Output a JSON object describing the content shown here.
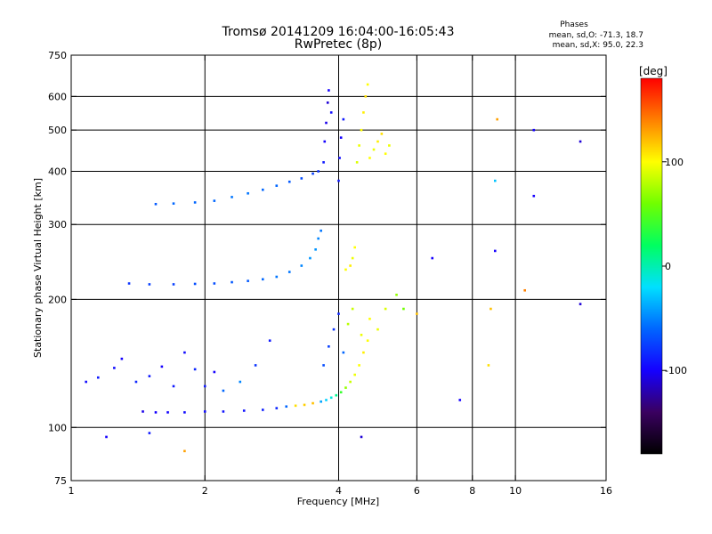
{
  "chart_data": {
    "type": "scatter",
    "title": "Tromsø 20141209 16:04:00-16:05:43",
    "subtitle": "RwPretec (8p)",
    "xlabel": "Frequency [MHz]",
    "ylabel": "Stationary phase Virtual Height [km]",
    "x_scale": "log2",
    "y_scale": "log",
    "xlim": [
      1,
      16
    ],
    "ylim": [
      75,
      750
    ],
    "x_ticks": [
      1,
      2,
      4,
      6,
      8,
      10,
      16
    ],
    "y_ticks": [
      75,
      100,
      200,
      300,
      400,
      500,
      600,
      750
    ],
    "x_grid": [
      2,
      4,
      6,
      8,
      10
    ],
    "y_grid": [
      100,
      200,
      300,
      400,
      500,
      600
    ],
    "grid": true,
    "phase_box": {
      "title": "Phases",
      "line_o": "mean, sd,O: -71.3, 18.7",
      "line_x": "mean, sd,X:  95.0, 22.3"
    },
    "colorbar": {
      "label": "[deg]",
      "range": [
        -180,
        180
      ],
      "ticks": [
        -100,
        0,
        100
      ],
      "colors": [
        "#000000",
        "#3a0060",
        "#1500ff",
        "#0066ff",
        "#00e0ff",
        "#00ff60",
        "#70ff00",
        "#ffff00",
        "#ff8000",
        "#ff0000"
      ]
    },
    "series": [
      {
        "points": [
          [
            1.45,
            109,
            -105
          ],
          [
            1.55,
            108.5,
            -100
          ],
          [
            1.65,
            108.5,
            -98
          ],
          [
            1.8,
            108.5,
            -95
          ],
          [
            2.0,
            109,
            -95
          ],
          [
            2.2,
            109,
            -92
          ],
          [
            2.45,
            109.5,
            -92
          ],
          [
            2.7,
            110,
            -88
          ],
          [
            2.9,
            111,
            -85
          ],
          [
            3.05,
            112,
            -60
          ],
          [
            3.2,
            112.5,
            110
          ],
          [
            3.35,
            113,
            115
          ],
          [
            3.5,
            114,
            120
          ],
          [
            3.65,
            115,
            -40
          ],
          [
            3.75,
            116,
            -25
          ],
          [
            3.85,
            117.5,
            -10
          ],
          [
            3.95,
            119,
            10
          ],
          [
            4.05,
            121,
            40
          ],
          [
            4.15,
            124,
            70
          ],
          [
            4.25,
            128,
            85
          ],
          [
            4.35,
            133,
            95
          ],
          [
            4.45,
            140,
            100
          ],
          [
            4.55,
            150,
            105
          ],
          [
            4.65,
            160,
            100
          ],
          [
            1.35,
            218,
            -80
          ],
          [
            1.5,
            217,
            -75
          ],
          [
            1.7,
            217,
            -75
          ],
          [
            1.9,
            217.5,
            -70
          ],
          [
            2.1,
            218,
            -70
          ],
          [
            2.3,
            219.5,
            -65
          ],
          [
            2.5,
            221,
            -65
          ],
          [
            2.7,
            223,
            -60
          ],
          [
            2.9,
            226,
            -55
          ],
          [
            3.1,
            232,
            -55
          ],
          [
            3.3,
            240,
            -50
          ],
          [
            3.45,
            250,
            -45
          ],
          [
            3.55,
            262,
            -45
          ],
          [
            3.6,
            278,
            -50
          ],
          [
            3.65,
            290,
            -55
          ],
          [
            4.15,
            235,
            100
          ],
          [
            4.25,
            240,
            105
          ],
          [
            4.3,
            250,
            95
          ],
          [
            4.35,
            265,
            100
          ],
          [
            1.55,
            335,
            -65
          ],
          [
            1.7,
            336,
            -60
          ],
          [
            1.9,
            338,
            -60
          ],
          [
            2.1,
            341,
            -60
          ],
          [
            2.3,
            348,
            -55
          ],
          [
            2.5,
            355,
            -55
          ],
          [
            2.7,
            362,
            -60
          ],
          [
            2.9,
            370,
            -60
          ],
          [
            3.1,
            378,
            -65
          ],
          [
            3.3,
            385,
            -70
          ],
          [
            3.5,
            395,
            -75
          ],
          [
            3.6,
            400,
            -80
          ],
          [
            3.7,
            420,
            -90
          ],
          [
            3.72,
            470,
            -100
          ],
          [
            3.75,
            520,
            -105
          ],
          [
            3.78,
            580,
            -110
          ],
          [
            3.8,
            620,
            -100
          ],
          [
            3.85,
            550,
            -95
          ],
          [
            4.0,
            380,
            -90
          ],
          [
            4.02,
            430,
            -95
          ],
          [
            4.05,
            480,
            -100
          ],
          [
            4.1,
            530,
            -90
          ],
          [
            4.4,
            420,
            90
          ],
          [
            4.45,
            460,
            95
          ],
          [
            4.5,
            500,
            100
          ],
          [
            4.55,
            550,
            105
          ],
          [
            4.6,
            600,
            110
          ],
          [
            4.65,
            640,
            100
          ],
          [
            4.7,
            430,
            100
          ],
          [
            4.8,
            450,
            95
          ],
          [
            4.9,
            470,
            105
          ],
          [
            5.0,
            490,
            110
          ],
          [
            5.1,
            440,
            100
          ],
          [
            5.2,
            460,
            95
          ],
          [
            1.08,
            128,
            -95
          ],
          [
            1.15,
            131,
            -90
          ],
          [
            1.25,
            138,
            -95
          ],
          [
            1.3,
            145,
            -100
          ],
          [
            1.4,
            128,
            -85
          ],
          [
            1.5,
            132,
            -90
          ],
          [
            1.6,
            139,
            -100
          ],
          [
            1.7,
            125,
            -90
          ],
          [
            1.8,
            150,
            -95
          ],
          [
            1.9,
            137,
            -85
          ],
          [
            2.0,
            125,
            -90
          ],
          [
            2.1,
            135,
            -100
          ],
          [
            2.2,
            122,
            -60
          ],
          [
            2.4,
            128,
            -50
          ],
          [
            2.6,
            140,
            -80
          ],
          [
            2.8,
            160,
            -90
          ],
          [
            3.7,
            140,
            -70
          ],
          [
            3.8,
            155,
            -75
          ],
          [
            3.9,
            170,
            -80
          ],
          [
            4.0,
            185,
            -85
          ],
          [
            4.1,
            150,
            -60
          ],
          [
            4.2,
            175,
            80
          ],
          [
            4.3,
            190,
            85
          ],
          [
            4.5,
            165,
            95
          ],
          [
            4.7,
            180,
            100
          ],
          [
            4.9,
            170,
            95
          ],
          [
            5.1,
            190,
            90
          ],
          [
            5.4,
            205,
            70
          ],
          [
            5.6,
            190,
            60
          ],
          [
            1.2,
            95,
            -100
          ],
          [
            1.5,
            97,
            -90
          ],
          [
            1.8,
            88,
            130
          ],
          [
            4.5,
            95,
            -110
          ],
          [
            7.5,
            116,
            -100
          ],
          [
            8.7,
            140,
            110
          ],
          [
            8.8,
            190,
            120
          ],
          [
            9.0,
            260,
            -100
          ],
          [
            9.0,
            380,
            -30
          ],
          [
            9.1,
            530,
            130
          ],
          [
            10.5,
            210,
            140
          ],
          [
            11.0,
            350,
            -100
          ],
          [
            11.0,
            500,
            -100
          ],
          [
            14.0,
            470,
            -110
          ],
          [
            14.0,
            195,
            -110
          ],
          [
            6.5,
            250,
            -100
          ],
          [
            6.0,
            185,
            120
          ]
        ]
      }
    ]
  }
}
